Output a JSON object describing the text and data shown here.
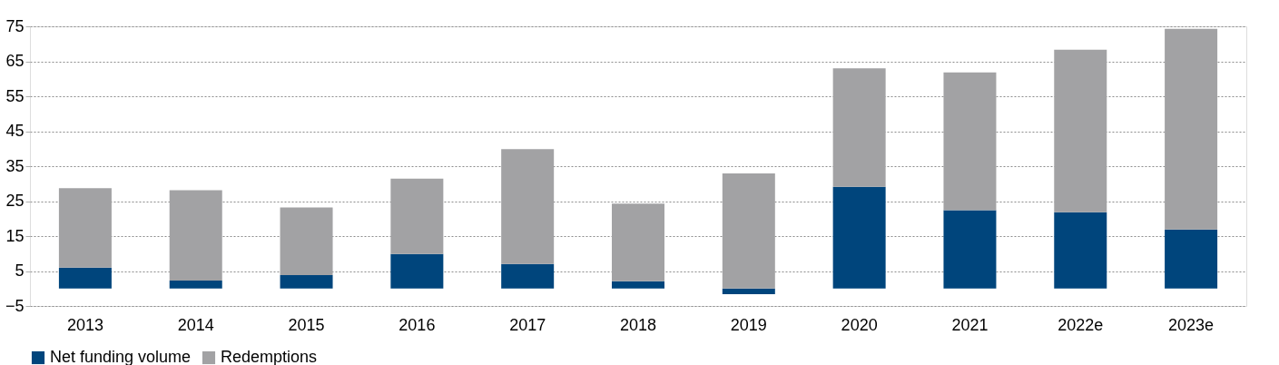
{
  "chart_data": {
    "type": "bar",
    "stacked": true,
    "categories": [
      "2013",
      "2014",
      "2015",
      "2016",
      "2017",
      "2018",
      "2019",
      "2020",
      "2021",
      "2022e",
      "2023e"
    ],
    "series": [
      {
        "name": "Net funding volume",
        "color": "#00457c",
        "values": [
          6.0,
          2.3,
          3.8,
          9.9,
          7.0,
          2.1,
          -1.6,
          29.1,
          22.4,
          21.8,
          16.9
        ]
      },
      {
        "name": "Redemptions",
        "color": "#a2a2a4",
        "values": [
          22.7,
          25.8,
          19.4,
          21.5,
          32.9,
          22.2,
          32.9,
          33.9,
          39.4,
          46.5,
          57.4
        ]
      }
    ],
    "ylim": [
      -5,
      75
    ],
    "yticks": [
      -5,
      5,
      15,
      25,
      35,
      45,
      55,
      65,
      75
    ],
    "grid": "y",
    "legend": "bottom"
  }
}
